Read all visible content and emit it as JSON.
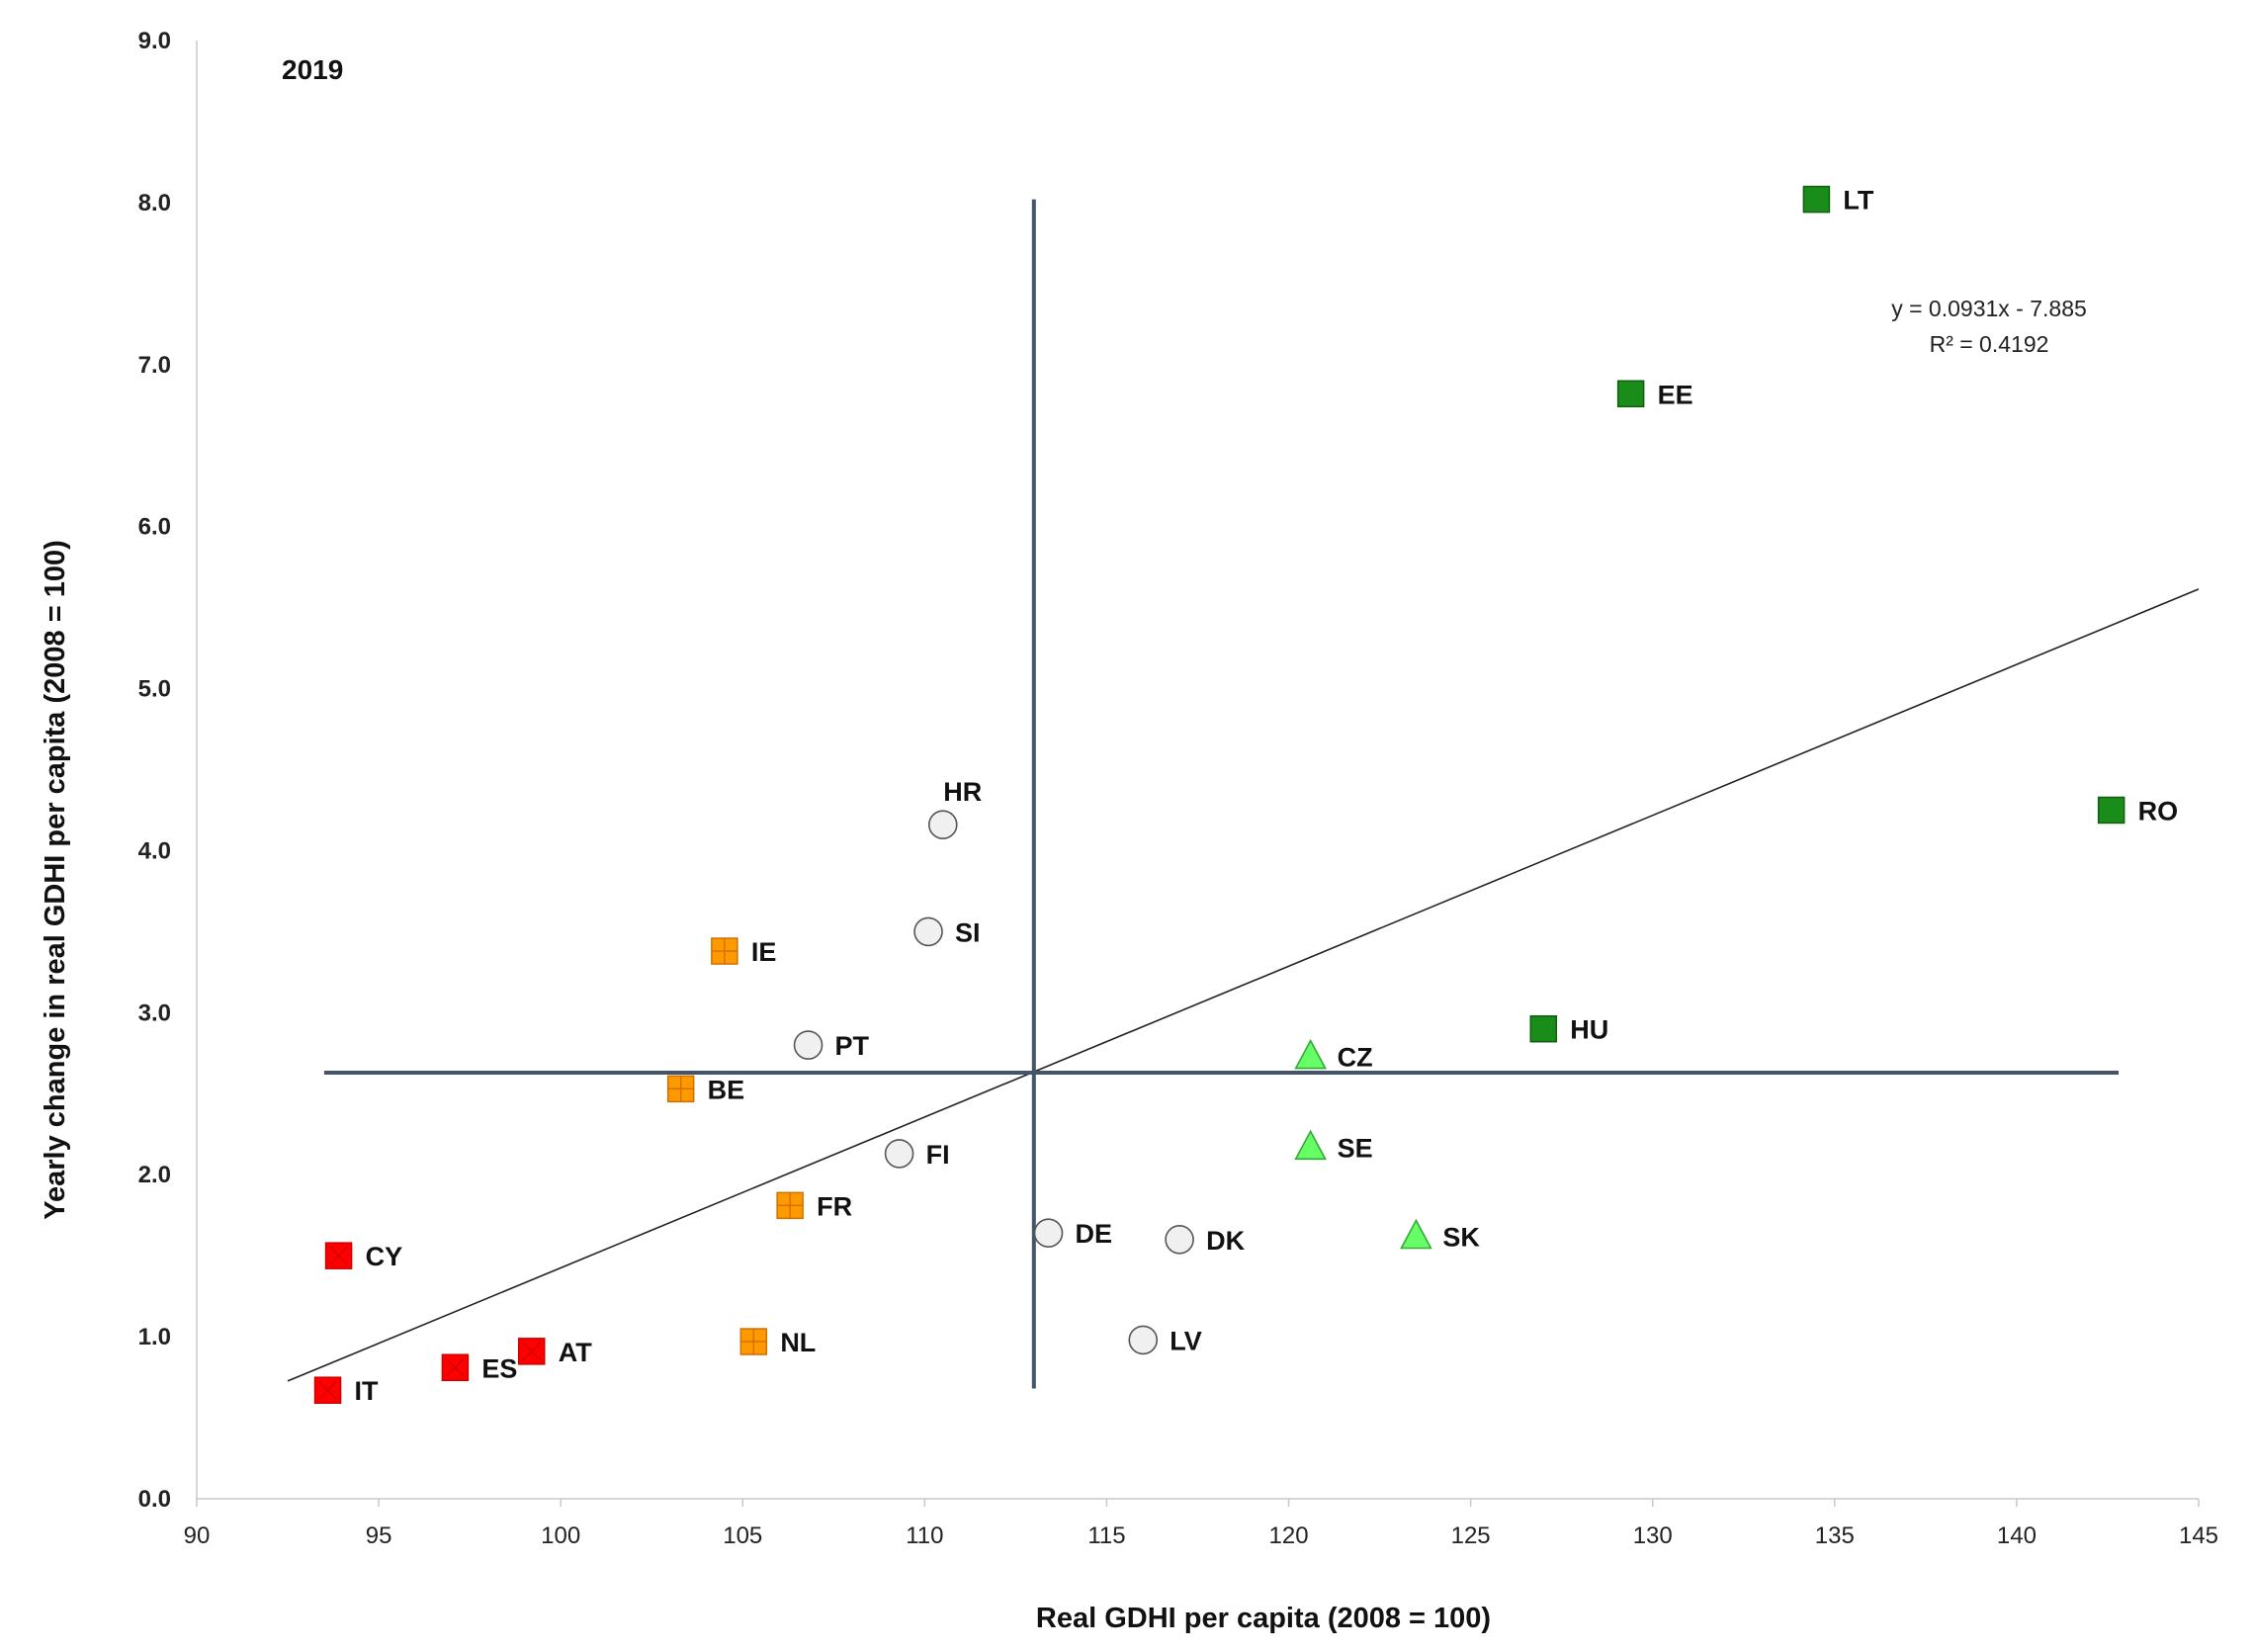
{
  "chart_data": {
    "type": "scatter",
    "title": "2019",
    "xlabel": "Real GDHI per capita (2008 = 100)",
    "ylabel": "Yearly change in real GDHI per capita (2008 = 100)",
    "xlim": [
      90,
      145
    ],
    "ylim": [
      0,
      9
    ],
    "x_ticks": [
      "90",
      "95",
      "100",
      "105",
      "110",
      "115",
      "120",
      "125",
      "130",
      "135",
      "140",
      "145"
    ],
    "y_ticks": [
      "0.0",
      "1.0",
      "2.0",
      "3.0",
      "4.0",
      "5.0",
      "6.0",
      "7.0",
      "8.0",
      "9.0"
    ],
    "trendline": {
      "equation": "y = 0.0931x - 7.885",
      "r_squared": "R² = 0.4192",
      "slope": 0.0931,
      "intercept": -7.885,
      "x_range": [
        92.5,
        145
      ]
    },
    "quadrant_lines": {
      "vertical_x": 113,
      "vertical_y_range": [
        0.68,
        8.02
      ],
      "horizontal_y": 2.63,
      "horizontal_x_range": [
        93.5,
        142.8
      ]
    },
    "group_styles": {
      "red": {
        "shape": "square-x",
        "fill": "#ff0000",
        "stroke": "#cc0000"
      },
      "orange": {
        "shape": "square-plus",
        "fill": "#ff9900",
        "stroke": "#d07000"
      },
      "white": {
        "shape": "circle",
        "fill": "#f0f0f0",
        "stroke": "#555555"
      },
      "lightgreen": {
        "shape": "triangle",
        "fill": "#66ff66",
        "stroke": "#33aa33"
      },
      "darkgreen": {
        "shape": "square",
        "fill": "#1a8c1a",
        "stroke": "#0f5f0f"
      }
    },
    "series": [
      {
        "name": "red",
        "points": [
          {
            "label": "IT",
            "x": 93.6,
            "y": 0.67
          },
          {
            "label": "ES",
            "x": 97.1,
            "y": 0.81
          },
          {
            "label": "AT",
            "x": 99.2,
            "y": 0.91
          },
          {
            "label": "CY",
            "x": 93.9,
            "y": 1.5
          }
        ]
      },
      {
        "name": "orange",
        "points": [
          {
            "label": "NL",
            "x": 105.3,
            "y": 0.97
          },
          {
            "label": "FR",
            "x": 106.3,
            "y": 1.81
          },
          {
            "label": "BE",
            "x": 103.3,
            "y": 2.53
          },
          {
            "label": "IE",
            "x": 104.5,
            "y": 3.38
          }
        ]
      },
      {
        "name": "white",
        "points": [
          {
            "label": "FI",
            "x": 109.3,
            "y": 2.13
          },
          {
            "label": "PT",
            "x": 106.8,
            "y": 2.8
          },
          {
            "label": "SI",
            "x": 110.1,
            "y": 3.5
          },
          {
            "label": "HR",
            "x": 110.5,
            "y": 4.16
          },
          {
            "label": "DE",
            "x": 113.4,
            "y": 1.64
          },
          {
            "label": "DK",
            "x": 117.0,
            "y": 1.6
          },
          {
            "label": "LV",
            "x": 116.0,
            "y": 0.98
          }
        ]
      },
      {
        "name": "lightgreen",
        "points": [
          {
            "label": "CZ",
            "x": 120.6,
            "y": 2.73
          },
          {
            "label": "SE",
            "x": 120.6,
            "y": 2.17
          },
          {
            "label": "SK",
            "x": 123.5,
            "y": 1.62
          }
        ]
      },
      {
        "name": "darkgreen",
        "points": [
          {
            "label": "HU",
            "x": 127.0,
            "y": 2.9
          },
          {
            "label": "EE",
            "x": 129.4,
            "y": 6.82
          },
          {
            "label": "LT",
            "x": 134.5,
            "y": 8.02
          },
          {
            "label": "RO",
            "x": 142.6,
            "y": 4.25
          }
        ]
      }
    ]
  }
}
